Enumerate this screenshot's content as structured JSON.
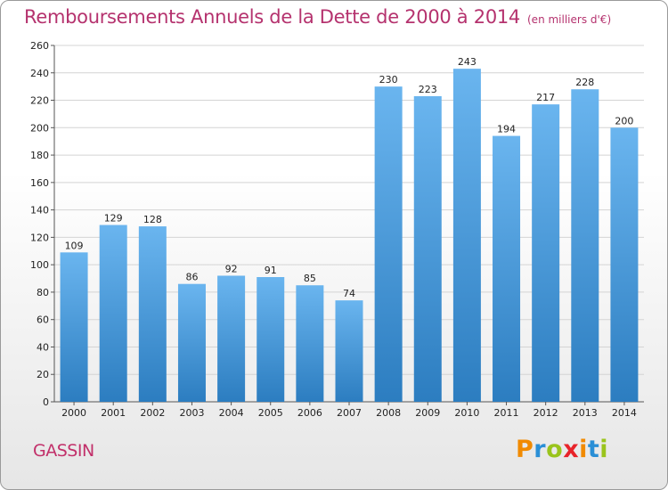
{
  "header": {
    "title": "Remboursements Annuels de la Dette de 2000 à 2014",
    "unit": "(en milliers d'€)"
  },
  "footer": {
    "commune": "GASSIN",
    "logo": {
      "letters": [
        "P",
        "r",
        "o",
        "x",
        "i",
        "t",
        "i"
      ],
      "text": "Proxiti"
    }
  },
  "colors": {
    "title": "#b5326e",
    "bar_top": "#6ab5ef",
    "bar_bottom": "#2c7dc0",
    "grid": "#d4d4d4",
    "logo": [
      "#f18a00",
      "#2a8fd6",
      "#9ac41c",
      "#e8232a",
      "#f18a00",
      "#2a8fd6",
      "#9ac41c"
    ]
  },
  "chart_data": {
    "type": "bar",
    "title": "Remboursements Annuels de la Dette de 2000 à 2014",
    "subtitle": "(en milliers d'€)",
    "xlabel": "",
    "ylabel": "",
    "categories": [
      "2000",
      "2001",
      "2002",
      "2003",
      "2004",
      "2005",
      "2006",
      "2007",
      "2008",
      "2009",
      "2010",
      "2011",
      "2012",
      "2013",
      "2014"
    ],
    "values": [
      109,
      129,
      128,
      86,
      92,
      91,
      85,
      74,
      230,
      223,
      243,
      194,
      217,
      228,
      200
    ],
    "ylim": [
      0,
      260
    ],
    "yticks": [
      0,
      20,
      40,
      60,
      80,
      100,
      120,
      140,
      160,
      180,
      200,
      220,
      240,
      260
    ],
    "grid": true,
    "legend": "none"
  }
}
